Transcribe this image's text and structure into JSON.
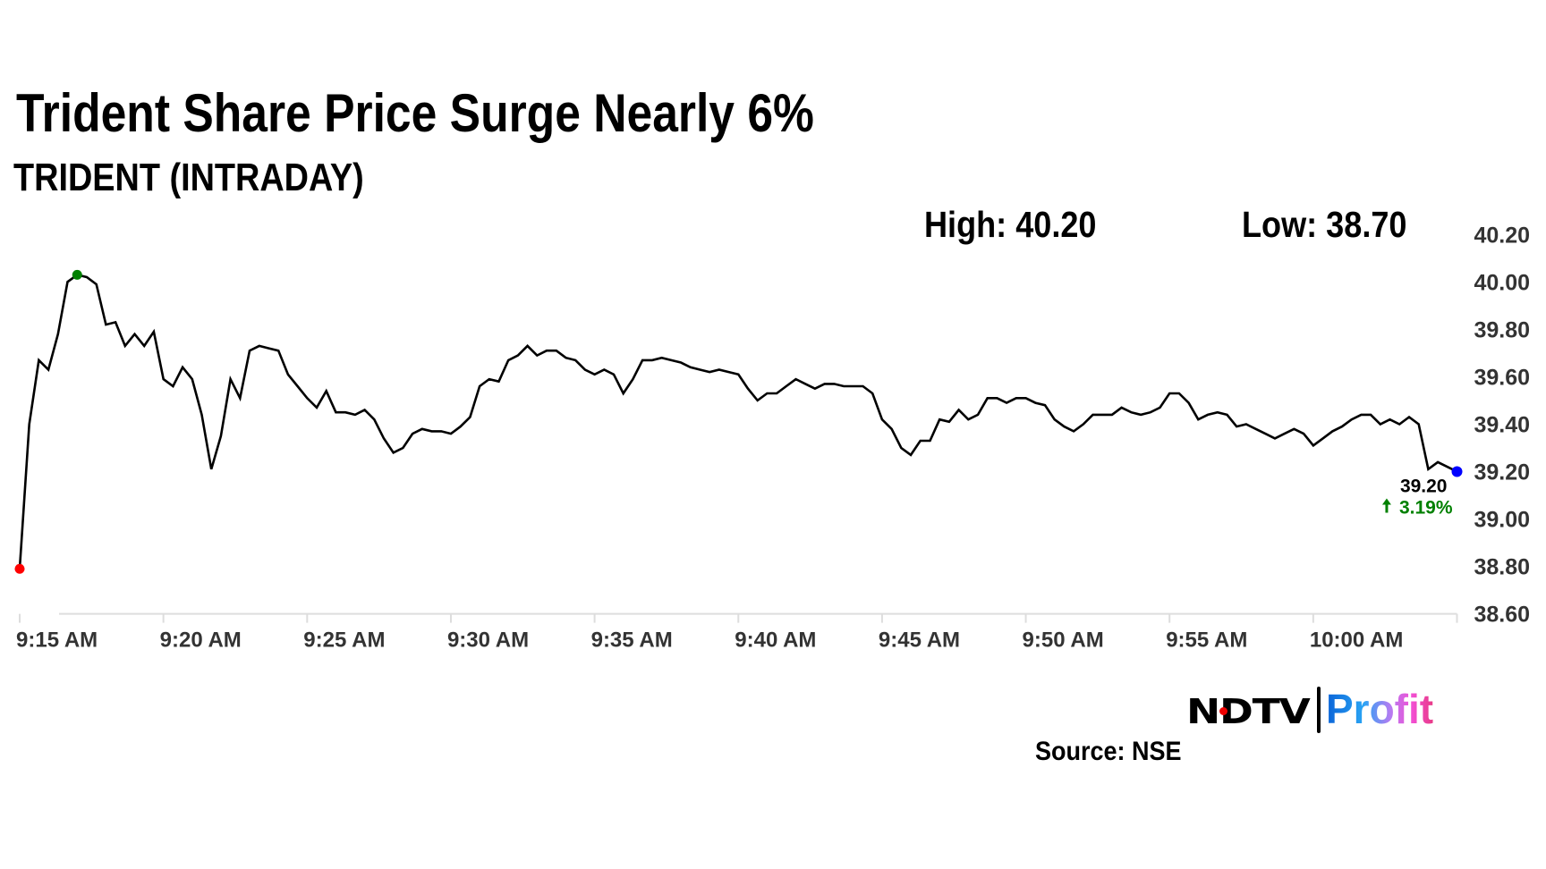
{
  "header": {
    "title": "Trident Share Price Surge Nearly 6%",
    "subtitle": "TRIDENT (INTRADAY)",
    "high_label": "High: 40.20",
    "low_label": "Low: 38.70"
  },
  "chart_data": {
    "type": "line",
    "title": "TRIDENT (INTRADAY)",
    "x_start": "9:15 AM",
    "x_end": "10:05 AM",
    "step_seconds": 20,
    "x_tick_labels": [
      "9:15 AM",
      "9:20 AM",
      "9:25 AM",
      "9:30 AM",
      "9:35 AM",
      "9:40 AM",
      "9:45 AM",
      "9:50 AM",
      "9:55 AM",
      "10:00 AM"
    ],
    "y_tick_labels": [
      "40.20",
      "40.00",
      "39.80",
      "39.60",
      "39.40",
      "39.20",
      "39.00",
      "38.80",
      "38.60"
    ],
    "ylim": [
      38.6,
      40.2
    ],
    "y_axis_position": "right",
    "grid": false,
    "high": 40.2,
    "low": 38.7,
    "last_price_label": "39.20",
    "change_label": "3.19%",
    "change_arrow": "arrow-up-icon",
    "colors": {
      "line": "#000000",
      "start_marker": "#ff0000",
      "high_marker": "#008000",
      "last_marker": "#0000ff",
      "change": "#008000",
      "axis_text": "#333333"
    },
    "values": [
      38.79,
      39.4,
      39.67,
      39.63,
      39.78,
      40.0,
      40.03,
      40.02,
      39.99,
      39.82,
      39.83,
      39.73,
      39.78,
      39.73,
      39.79,
      39.59,
      39.56,
      39.64,
      39.59,
      39.44,
      39.21,
      39.35,
      39.59,
      39.51,
      39.71,
      39.73,
      39.72,
      39.71,
      39.61,
      39.56,
      39.51,
      39.47,
      39.54,
      39.45,
      39.45,
      39.44,
      39.46,
      39.42,
      39.34,
      39.28,
      39.3,
      39.36,
      39.38,
      39.37,
      39.37,
      39.36,
      39.39,
      39.43,
      39.56,
      39.59,
      39.58,
      39.67,
      39.69,
      39.73,
      39.69,
      39.71,
      39.71,
      39.68,
      39.67,
      39.63,
      39.61,
      39.63,
      39.61,
      39.53,
      39.59,
      39.67,
      39.67,
      39.68,
      39.67,
      39.66,
      39.64,
      39.63,
      39.62,
      39.63,
      39.62,
      39.61,
      39.55,
      39.5,
      39.53,
      39.53,
      39.56,
      39.59,
      39.57,
      39.55,
      39.57,
      39.57,
      39.56,
      39.56,
      39.56,
      39.53,
      39.42,
      39.38,
      39.3,
      39.27,
      39.33,
      39.33,
      39.42,
      39.41,
      39.46,
      39.42,
      39.44,
      39.51,
      39.51,
      39.49,
      39.51,
      39.51,
      39.49,
      39.48,
      39.42,
      39.39,
      39.37,
      39.4,
      39.44,
      39.44,
      39.44,
      39.47,
      39.45,
      39.44,
      39.45,
      39.47,
      39.53,
      39.53,
      39.49,
      39.42,
      39.44,
      39.45,
      39.44,
      39.39,
      39.4,
      39.38,
      39.36,
      39.34,
      39.36,
      39.38,
      39.36,
      39.31,
      39.34,
      39.37,
      39.39,
      39.42,
      39.44,
      39.44,
      39.4,
      39.42,
      39.4,
      39.43,
      39.4,
      39.21,
      39.24,
      39.22,
      39.2
    ]
  },
  "footer": {
    "logo_left": "NDTV",
    "logo_right": "Profit",
    "source": "Source: NSE"
  }
}
